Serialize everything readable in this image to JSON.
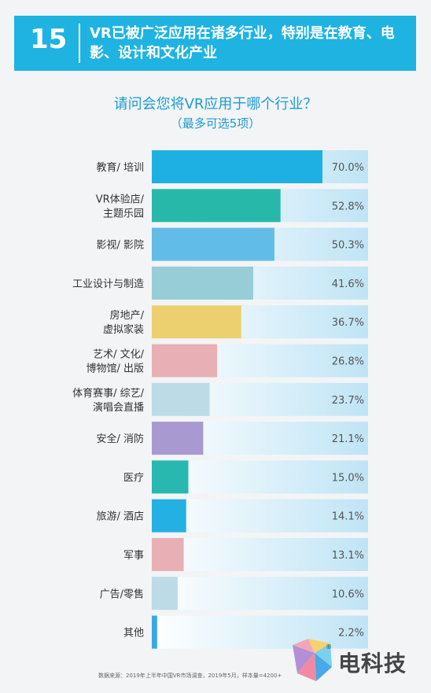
{
  "header": {
    "number": "15",
    "title": "VR已被广泛应用在诸多行业，特别是在教育、电影、设计和文化产业"
  },
  "question": {
    "title": "请问会您将VR应用于哪个行业？",
    "subtitle": "（最多可选5项）"
  },
  "chart_data": {
    "type": "bar",
    "orientation": "horizontal",
    "xlim": [
      0,
      100
    ],
    "categories": [
      [
        "教育/ 培训"
      ],
      [
        "VR体验店/",
        "主题乐园"
      ],
      [
        "影视/ 影院"
      ],
      [
        "工业设计与制造"
      ],
      [
        "房地产/",
        "虚拟家装"
      ],
      [
        "艺术/ 文化/",
        "博物馆/ 出版"
      ],
      [
        "体育赛事/ 综艺/",
        "演唱会直播"
      ],
      [
        "安全/ 消防"
      ],
      [
        "医疗"
      ],
      [
        "旅游/ 酒店"
      ],
      [
        "军事"
      ],
      [
        "广告/零售"
      ],
      [
        "其他"
      ]
    ],
    "values": [
      70.0,
      52.8,
      50.3,
      41.6,
      36.7,
      26.8,
      23.7,
      21.1,
      15.0,
      14.1,
      13.1,
      10.6,
      2.2
    ],
    "value_labels": [
      "70.0%",
      "52.8%",
      "50.3%",
      "41.6%",
      "36.7%",
      "26.8%",
      "23.7%",
      "21.1%",
      "15.0%",
      "14.1%",
      "13.1%",
      "10.6%",
      "2.2%"
    ],
    "colors": [
      "#1fb0e3",
      "#28b8aa",
      "#62bce8",
      "#96cdd7",
      "#ecd06f",
      "#e8b0b5",
      "#bcdbe6",
      "#a89ad0",
      "#28b8b0",
      "#25b0e3",
      "#e8b0b5",
      "#bcdbe6",
      "#3aa7e6"
    ],
    "track_color": "#c8e8f6"
  },
  "footnote": "数据来源：2019年上半年中国VR市场调查，2019年5月，样本量=4200+",
  "logo": {
    "text": "电科技",
    "mark": "®"
  }
}
